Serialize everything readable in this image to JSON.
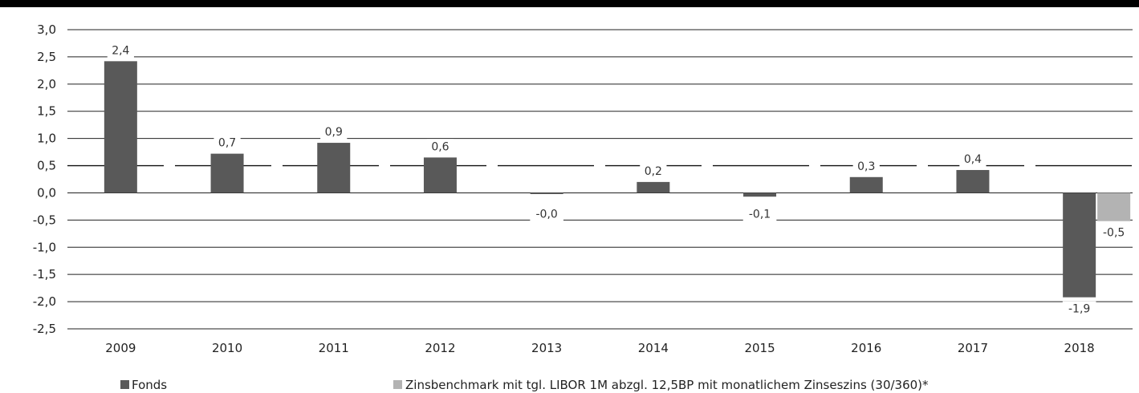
{
  "chart_data": {
    "type": "bar",
    "categories": [
      "2009",
      "2010",
      "2011",
      "2012",
      "2013",
      "2014",
      "2015",
      "2016",
      "2017",
      "2018"
    ],
    "series": [
      {
        "name": "Fonds",
        "color": "#595959",
        "values": [
          2.42,
          0.72,
          0.92,
          0.65,
          -0.02,
          0.2,
          -0.07,
          0.29,
          0.42,
          -1.92
        ],
        "labels": [
          "2,4",
          "0,7",
          "0,9",
          "0,6",
          "-0,0",
          "0,2",
          "-0,1",
          "0,3",
          "0,4",
          "-1,9"
        ]
      },
      {
        "name": "Zinsbenchmark mit tgl. LIBOR 1M abzgl. 12,5BP mit monatlichem Zinseszins (30/360)*",
        "color": "#b3b3b3",
        "values": [
          null,
          null,
          null,
          null,
          null,
          null,
          null,
          null,
          null,
          -0.52
        ],
        "labels": [
          "",
          "",
          "",
          "",
          "",
          "",
          "",
          "",
          "",
          "-0,5"
        ]
      }
    ],
    "reference_line": {
      "value": 0.5,
      "style": "dashed"
    },
    "ylim": [
      -2.5,
      3.0
    ],
    "yticks": [
      3.0,
      2.5,
      2.0,
      1.5,
      1.0,
      0.5,
      0.0,
      -0.5,
      -1.0,
      -1.5,
      -2.0,
      -2.5
    ],
    "ytick_labels": [
      "3,0",
      "2,5",
      "2,0",
      "1,5",
      "1,0",
      "0,5",
      "0,0",
      "-0,5",
      "-1,0",
      "-1,5",
      "-2,0",
      "-2,5"
    ],
    "grid": true,
    "legend_position": "bottom",
    "title": "",
    "xlabel": "",
    "ylabel": ""
  }
}
